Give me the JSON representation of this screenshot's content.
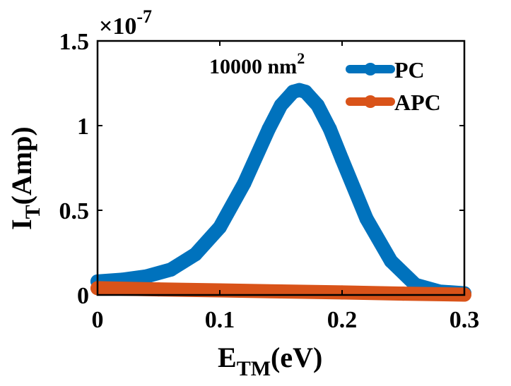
{
  "chart_data": {
    "type": "line",
    "title": "",
    "xlabel": "E",
    "xlabel_sub": "TM",
    "xlabel_suffix": "(eV)",
    "ylabel": "I",
    "ylabel_sub": "T",
    "ylabel_suffix": "(Amp)",
    "xlim": [
      0,
      0.3
    ],
    "ylim": [
      0,
      1.5
    ],
    "x_ticks": [
      0,
      0.1,
      0.2,
      0.3
    ],
    "x_tick_labels": [
      "0",
      "0.1",
      "0.2",
      "0.3"
    ],
    "y_ticks": [
      0,
      0.5,
      1,
      1.5
    ],
    "y_tick_labels": [
      "0",
      "0.5",
      "1",
      "1.5"
    ],
    "y_exponent_prefix": "×10",
    "y_exponent": "-7",
    "annotation_text": "10000 nm",
    "annotation_sup": "2",
    "legend_position": "top-right",
    "series": [
      {
        "name": "PC",
        "color": "#0072BD",
        "x": [
          0,
          0.02,
          0.04,
          0.06,
          0.08,
          0.1,
          0.12,
          0.14,
          0.15,
          0.16,
          0.165,
          0.17,
          0.18,
          0.19,
          0.2,
          0.22,
          0.24,
          0.26,
          0.28,
          0.3
        ],
        "y": [
          0.08,
          0.09,
          0.11,
          0.15,
          0.24,
          0.4,
          0.66,
          0.98,
          1.12,
          1.2,
          1.21,
          1.2,
          1.12,
          0.98,
          0.8,
          0.45,
          0.2,
          0.06,
          0.02,
          0.01
        ]
      },
      {
        "name": "APC",
        "color": "#D95319",
        "x": [
          0,
          0.05,
          0.1,
          0.15,
          0.2,
          0.25,
          0.3
        ],
        "y": [
          0.04,
          0.033,
          0.027,
          0.021,
          0.015,
          0.008,
          0.002
        ]
      }
    ]
  }
}
